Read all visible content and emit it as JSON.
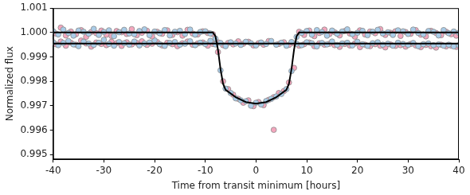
{
  "chart_data": {
    "type": "scatter",
    "x_label": "Time from transit minimum [hours]",
    "y_label": "Normalized flux",
    "xlim": [
      -40,
      40
    ],
    "xticks": [
      -40,
      -30,
      -20,
      -10,
      0,
      10,
      20,
      30,
      40
    ],
    "ylim": [
      0.9948,
      1.001
    ],
    "yticks": [
      0.995,
      0.996,
      0.997,
      0.998,
      0.999,
      {
        "value": 1,
        "label": "1.000"
      },
      1.001
    ],
    "grid": false,
    "series": [
      {
        "type": "scatter",
        "marker": "circle",
        "color": "#a9cce8",
        "x": [
          -40,
          -39,
          -38,
          -37,
          -36,
          -35,
          -34,
          -33,
          -32,
          -31,
          -30,
          -29,
          -28,
          -27,
          -26,
          -25,
          -24,
          -23,
          -22,
          -21,
          -20,
          -19,
          -18,
          -17,
          -16,
          -15,
          -14,
          -13,
          -12,
          -11,
          -10,
          -9,
          -8,
          -7,
          -6,
          -5,
          -4,
          -3,
          -2,
          -1,
          0,
          1,
          2,
          3,
          4,
          5,
          6,
          7,
          8,
          9,
          10,
          11,
          12,
          13,
          14,
          15,
          16,
          17,
          18,
          19,
          20,
          21,
          22,
          23,
          24,
          25,
          26,
          27,
          28,
          29,
          30,
          31,
          32,
          33,
          34,
          35,
          36,
          37,
          38,
          39,
          40
        ],
        "values": [
          1.00005,
          0.99992,
          1.00012,
          0.99998,
          0.99987,
          1.00008,
          1.00003,
          0.99995,
          1.00015,
          0.9999,
          1.00002,
          1.00009,
          0.99985,
          1.00001,
          1.00011,
          0.99996,
          0.99993,
          1.00006,
          1.00013,
          0.99989,
          1.00004,
          0.99997,
          1.0001,
          0.99988,
          1.00003,
          1.00007,
          0.99994,
          1.00012,
          0.99991,
          1.00002,
          1.00005,
          0.99996,
          0.99975,
          0.99845,
          0.9977,
          0.99752,
          0.9973,
          0.99722,
          0.99718,
          0.997,
          0.99712,
          0.99705,
          0.99719,
          0.99728,
          0.99738,
          0.99748,
          0.99768,
          0.99842,
          0.99982,
          0.99998,
          1.00006,
          0.99991,
          1.0001,
          1.00002,
          0.99987,
          1.00008,
          0.99995,
          1.00004,
          1.00013,
          0.99993,
          0.99999,
          1.00007,
          0.99989,
          1.00003,
          1.00011,
          0.99996,
          1.00001,
          0.9999,
          1.00009,
          1.00005,
          0.99994,
          1.00012,
          0.99998,
          0.99992,
          1.00006,
          1.00003,
          0.99988,
          1.0001,
          0.99997,
          1.00004,
          0.99999
        ]
      },
      {
        "type": "scatter",
        "marker": "circle",
        "color": "#f4a6bd",
        "x": [
          -39.5,
          -38.5,
          -37.5,
          -36.5,
          -35.5,
          -34.5,
          -33.5,
          -32.5,
          -31.5,
          -30.5,
          -29.5,
          -28.5,
          -27.5,
          -26.5,
          -25.5,
          -24.5,
          -23.5,
          -22.5,
          -21.5,
          -20.5,
          -19.5,
          -18.5,
          -17.5,
          -16.5,
          -15.5,
          -14.5,
          -13.5,
          -12.5,
          -11.5,
          -10.5,
          -9.5,
          -8.5,
          -7.5,
          -6.5,
          -5.5,
          -4.5,
          -3.5,
          -2.5,
          -1.5,
          -0.5,
          0.5,
          1.5,
          2.5,
          3.5,
          4.5,
          5.5,
          6.5,
          7.5,
          8.5,
          9.5,
          10.5,
          11.5,
          12.5,
          13.5,
          14.5,
          15.5,
          16.5,
          17.5,
          18.5,
          19.5,
          20.5,
          21.5,
          22.5,
          23.5,
          24.5,
          25.5,
          26.5,
          27.5,
          28.5,
          29.5,
          30.5,
          31.5,
          32.5,
          33.5,
          34.5,
          35.5,
          36.5,
          37.5,
          38.5,
          39.5
        ],
        "values": [
          0.99996,
          1.0002,
          0.99988,
          1.00004,
          0.99993,
          1.0001,
          0.99982,
          1.00002,
          0.99997,
          1.00008,
          0.99991,
          0.99986,
          1.00006,
          1.00001,
          0.99994,
          1.00014,
          0.99989,
          0.99999,
          1.00007,
          0.99984,
          1.00003,
          0.99995,
          1.00009,
          0.9999,
          1.00001,
          0.99987,
          1.00011,
          0.99996,
          0.99992,
          1.00005,
          0.99998,
          0.99993,
          0.9992,
          0.998,
          0.99768,
          0.99745,
          0.99728,
          0.99712,
          0.99722,
          0.99698,
          0.99715,
          0.99702,
          0.99724,
          0.99735,
          0.99752,
          0.9976,
          0.99795,
          0.99855,
          1.00003,
          0.9999,
          1.00008,
          0.99985,
          0.99998,
          1.00012,
          0.99994,
          1.00001,
          0.99988,
          1.00006,
          0.99996,
          0.99983,
          1.00009,
          0.99992,
          1.00004,
          0.99997,
          1.00014,
          0.9999,
          0.99999,
          1.00005,
          0.99986,
          1.00002,
          0.99995,
          1.0001,
          0.99991,
          0.99984,
          1.00007,
          0.99998,
          0.99989,
          1.00003,
          0.99993,
          0.99987
        ]
      },
      {
        "type": "line",
        "line_style": "solid",
        "color": "#000000",
        "x": [
          -40,
          -8.5,
          -8,
          -7.5,
          -7,
          -6.5,
          -6,
          -4,
          -2,
          0,
          2,
          4,
          6,
          6.5,
          7,
          7.5,
          8,
          8.5,
          40
        ],
        "values": [
          1,
          1,
          0.99985,
          0.9993,
          0.9985,
          0.9979,
          0.99765,
          0.99735,
          0.99715,
          0.99708,
          0.99715,
          0.99735,
          0.99765,
          0.9979,
          0.9985,
          0.9993,
          0.99985,
          1,
          1
        ]
      },
      {
        "type": "scatter",
        "marker": "circle",
        "color": "#a9cce8",
        "x": [
          -40,
          -39,
          -38,
          -37,
          -36,
          -35,
          -34,
          -33,
          -32,
          -31,
          -30,
          -29,
          -28,
          -27,
          -26,
          -25,
          -24,
          -23,
          -22,
          -21,
          -20,
          -19,
          -18,
          -17,
          -16,
          -15,
          -14,
          -13,
          -12,
          -11,
          -10,
          -9,
          -8,
          -7,
          -6,
          -5,
          -4,
          -3,
          -2,
          -1,
          0,
          1,
          2,
          3,
          4,
          5,
          6,
          7,
          8,
          9,
          10,
          11,
          12,
          13,
          14,
          15,
          16,
          17,
          18,
          19,
          20,
          21,
          22,
          23,
          24,
          25,
          26,
          27,
          28,
          29,
          30,
          31,
          32,
          33,
          34,
          35,
          36,
          37,
          38,
          39,
          40
        ],
        "values": [
          0.9996,
          0.99948,
          0.99957,
          0.99965,
          0.99951,
          0.99944,
          0.99962,
          0.99955,
          0.99949,
          0.99958,
          0.9997,
          0.99953,
          0.99946,
          0.99961,
          0.99956,
          0.9995,
          0.99963,
          0.99947,
          0.99955,
          0.99959,
          0.99968,
          0.99952,
          0.99945,
          0.99957,
          0.99961,
          0.9995,
          0.99954,
          0.99964,
          0.99948,
          0.99958,
          0.99953,
          0.99966,
          0.99951,
          0.99957,
          0.99944,
          0.9996,
          0.99955,
          0.99949,
          0.99962,
          0.99956,
          0.99947,
          0.99959,
          0.99953,
          0.99965,
          0.9995,
          0.99958,
          0.99946,
          0.99961,
          0.99954,
          0.99948,
          0.9996,
          0.99956,
          0.99943,
          0.99957,
          0.99951,
          0.99963,
          0.99949,
          0.99955,
          0.99958,
          0.99947,
          0.99962,
          0.99952,
          0.99945,
          0.99956,
          0.9996,
          0.9995,
          0.99954,
          0.99946,
          0.99958,
          0.99953,
          0.99949,
          0.99957,
          0.99944,
          0.99952,
          0.99955,
          0.99948,
          0.99951,
          0.99946,
          0.9995,
          0.99943,
          0.99948
        ]
      },
      {
        "type": "scatter",
        "marker": "circle",
        "color": "#f4a6bd",
        "x": [
          -39.5,
          -38.5,
          -37.5,
          -36.5,
          -35.5,
          -34.5,
          -33.5,
          -32.5,
          -31.5,
          -30.5,
          -29.5,
          -28.5,
          -27.5,
          -26.5,
          -25.5,
          -24.5,
          -23.5,
          -22.5,
          -21.5,
          -20.5,
          -19.5,
          -18.5,
          -17.5,
          -16.5,
          -15.5,
          -14.5,
          -13.5,
          -12.5,
          -11.5,
          -10.5,
          -9.5,
          -8.5,
          -7.5,
          -6.5,
          -5.5,
          -4.5,
          -3.5,
          -2.5,
          -1.5,
          -0.5,
          0.5,
          1.5,
          2.5,
          3.5,
          4.5,
          5.5,
          6.5,
          7.5,
          8.5,
          9.5,
          10.5,
          11.5,
          12.5,
          13.5,
          14.5,
          15.5,
          16.5,
          17.5,
          18.5,
          19.5,
          20.5,
          21.5,
          22.5,
          23.5,
          24.5,
          25.5,
          26.5,
          27.5,
          28.5,
          29.5,
          30.5,
          31.5,
          32.5,
          33.5,
          34.5,
          35.5,
          36.5,
          37.5,
          38.5,
          39.5
        ],
        "values": [
          0.99952,
          0.99963,
          0.99946,
          0.99958,
          0.9995,
          0.99967,
          0.99955,
          0.99942,
          0.99959,
          0.99953,
          0.99948,
          0.99962,
          0.99956,
          0.99945,
          0.9996,
          0.99951,
          0.99957,
          0.99964,
          0.99949,
          0.99954,
          0.99961,
          0.99947,
          0.99958,
          0.99952,
          0.99944,
          0.99956,
          0.99963,
          0.9995,
          0.99955,
          0.99959,
          0.99946,
          0.99953,
          0.9996,
          0.99948,
          0.99957,
          0.99951,
          0.99964,
          0.99954,
          0.99962,
          0.99947,
          0.99956,
          0.9995,
          0.99965,
          0.99601,
          0.99953,
          0.9996,
          0.99949,
          0.99955,
          0.99946,
          0.99952,
          0.99959,
          0.99944,
          0.99956,
          0.9995,
          0.99954,
          0.99948,
          0.99941,
          0.99953,
          0.99947,
          0.99955,
          0.9994,
          0.9995,
          0.99944,
          0.99952,
          0.99946,
          0.99939,
          0.99951,
          0.99945,
          0.99948,
          0.99942,
          0.99953,
          0.99947,
          0.9994,
          0.99949,
          0.99944,
          0.99938,
          0.9995,
          0.99943,
          0.99946,
          0.99941
        ]
      },
      {
        "type": "line",
        "line_style": "solid",
        "color": "#000000",
        "x": [
          -40,
          40
        ],
        "values": [
          0.99955,
          0.99955
        ]
      }
    ]
  }
}
